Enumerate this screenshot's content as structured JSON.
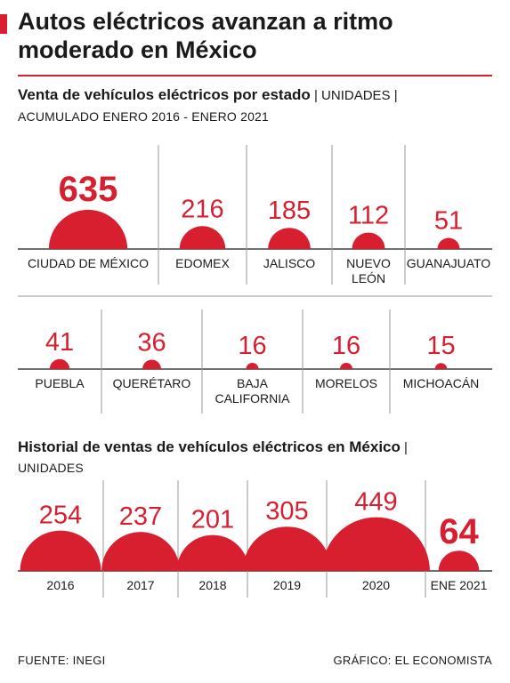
{
  "headline": {
    "line1": "Autos eléctricos avanzan a ritmo",
    "line2": "moderado en México"
  },
  "colors": {
    "accent": "#d71f2f",
    "text": "#1a1a1a",
    "divider": "#9a9a9a"
  },
  "section_state": {
    "title": "Venta de vehículos eléctricos por estado",
    "unit_label": " | UNIDADES |",
    "subtitle": "ACUMULADO ENERO 2016 - ENERO 2021"
  },
  "section_history": {
    "title": "Historial de ventas de vehículos eléctricos en México",
    "unit_label": " |",
    "subtitle": "UNIDADES"
  },
  "chart_data": [
    {
      "type": "bar",
      "encoding": "semicircle-area",
      "title": "Venta de vehículos eléctricos por estado",
      "unit": "UNIDADES",
      "categories": [
        "CIUDAD DE MÉXICO",
        "EDOMEX",
        "JALISCO",
        "NUEVO LEÓN",
        "GUANAJUATO",
        "PUEBLA",
        "QUERÉTARO",
        "BAJA CALIFORNIA",
        "MORELOS",
        "MICHOACÁN"
      ],
      "values": [
        635,
        216,
        185,
        112,
        51,
        41,
        36,
        16,
        16,
        15
      ]
    },
    {
      "type": "bar",
      "encoding": "semicircle-area",
      "title": "Historial de ventas de vehículos eléctricos en México",
      "unit": "UNIDADES",
      "categories": [
        "2016",
        "2017",
        "2018",
        "2019",
        "2020",
        "ENE 2021"
      ],
      "values": [
        254,
        237,
        201,
        305,
        449,
        64
      ]
    }
  ],
  "footer": {
    "source": "FUENTE: INEGI",
    "credit": "GRÁFICO: EL ECONOMISTA"
  }
}
